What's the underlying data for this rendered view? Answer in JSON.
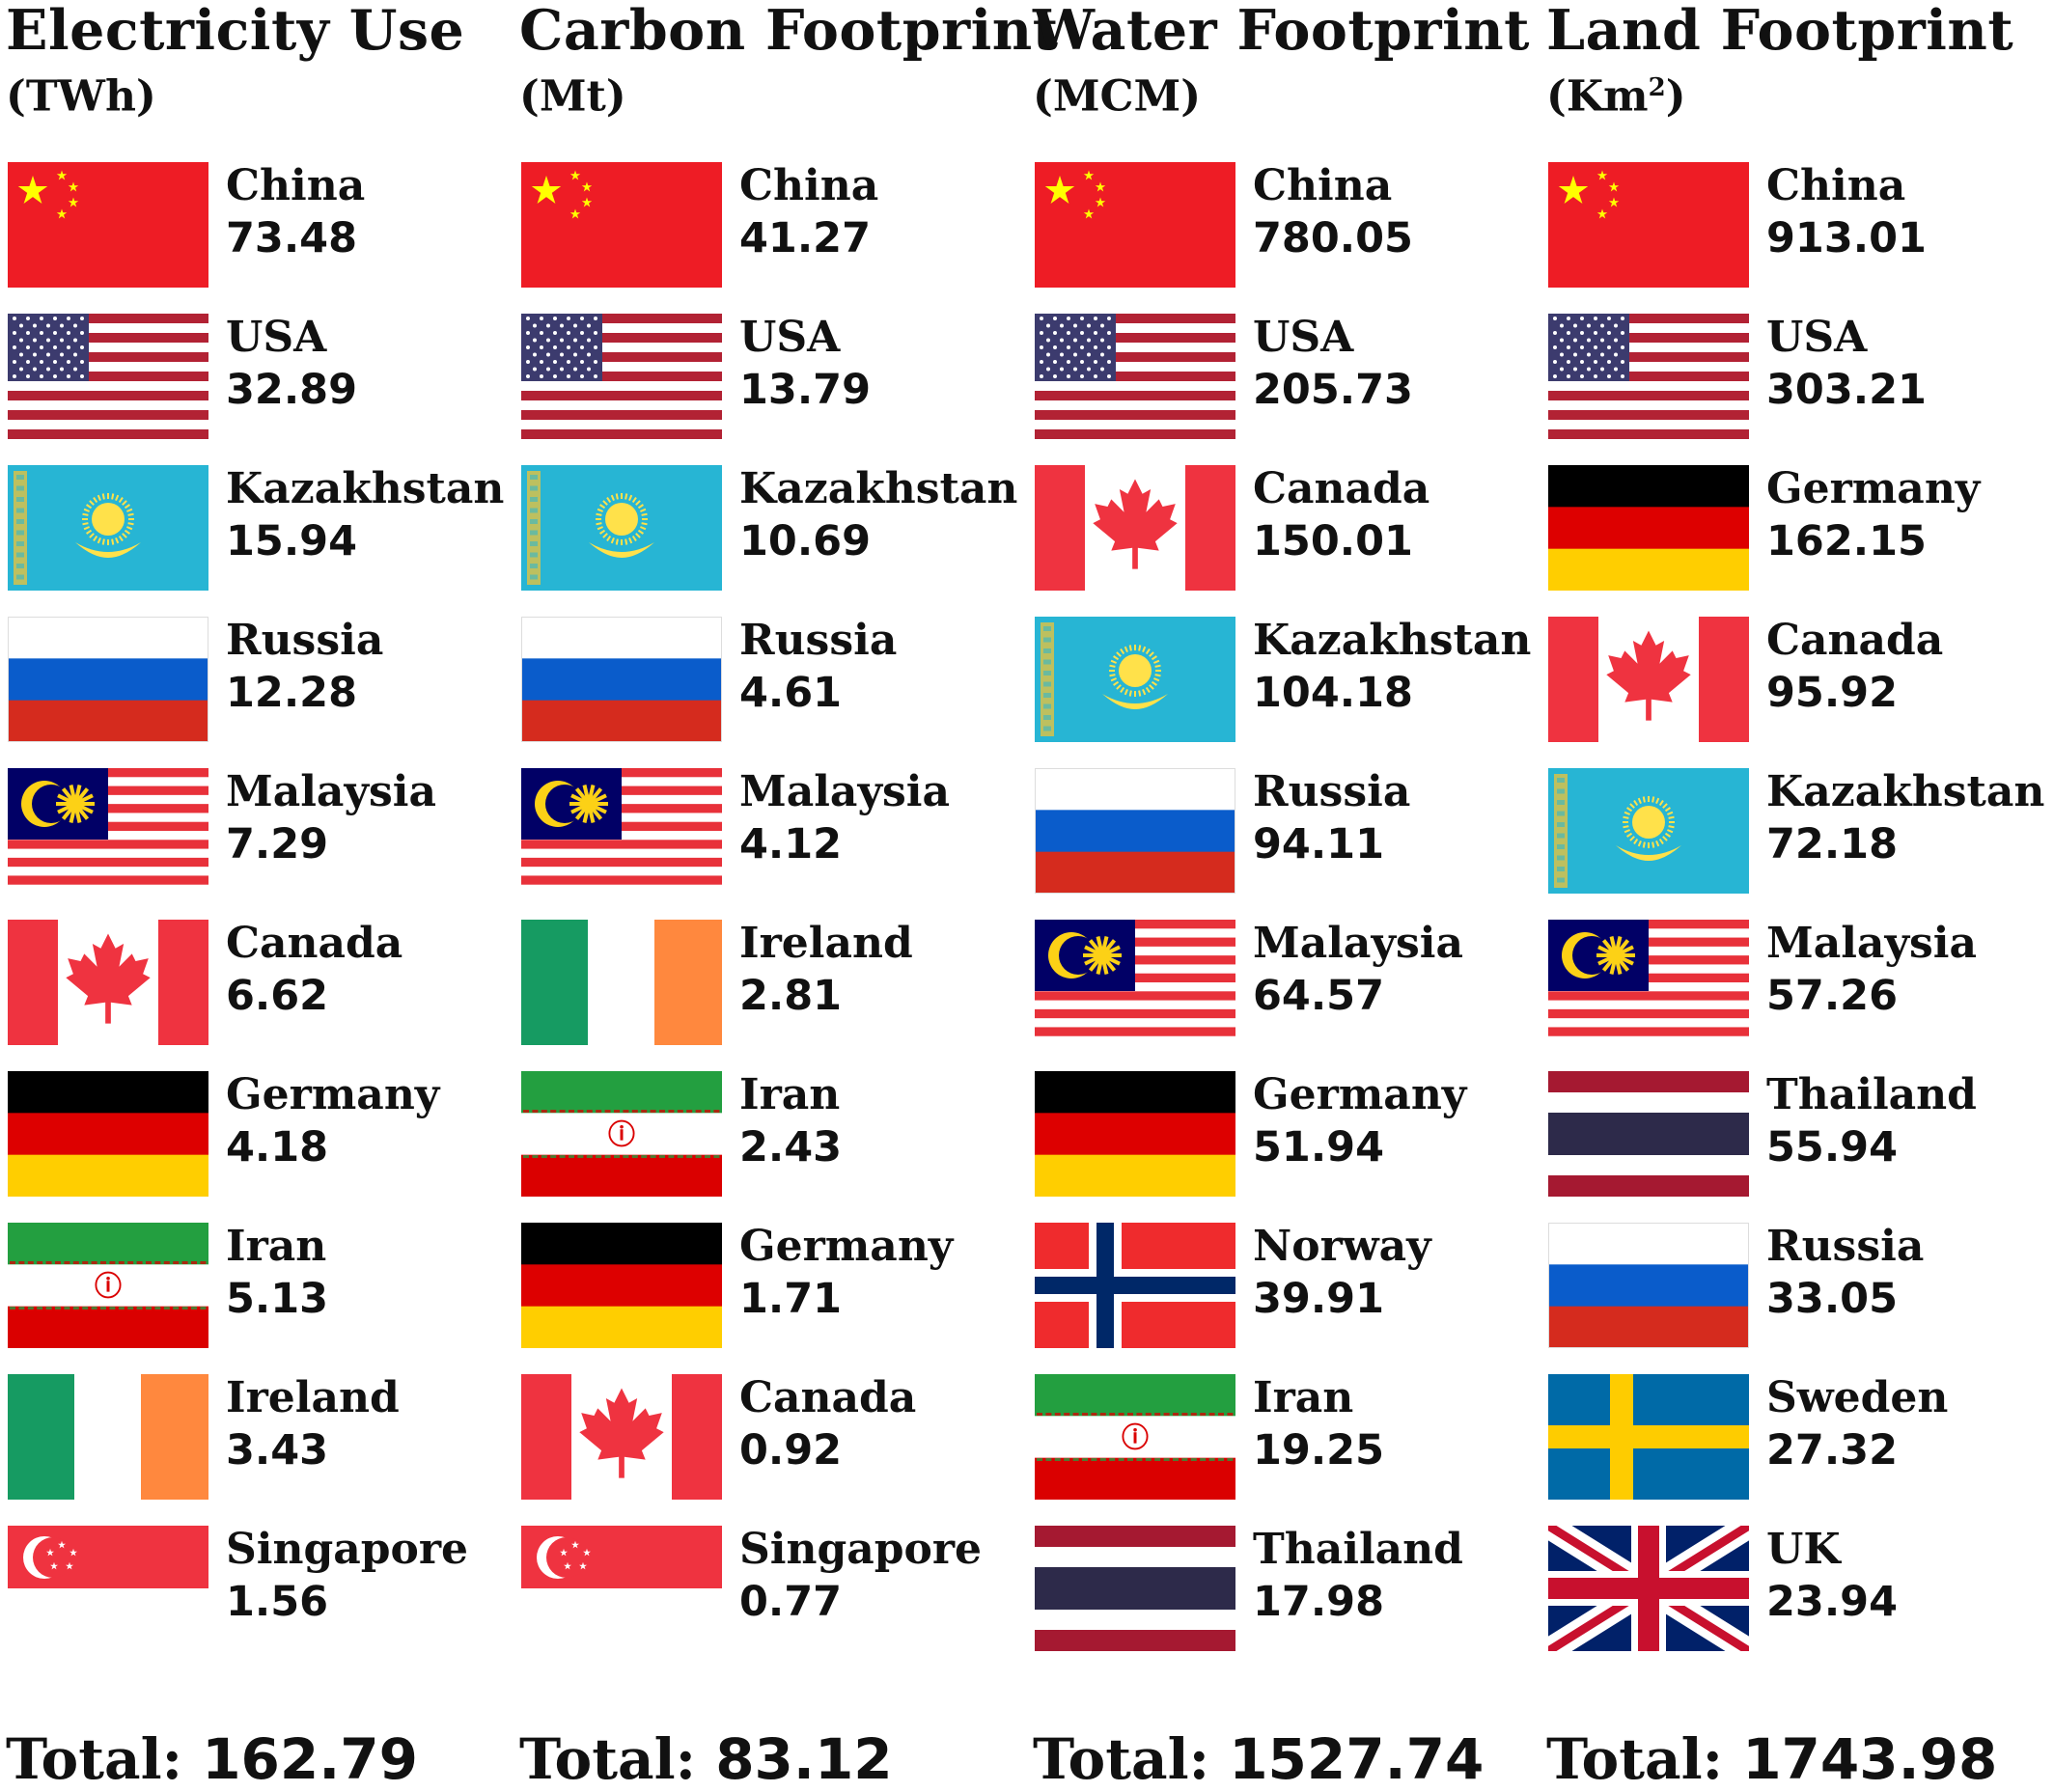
{
  "chart_data": {
    "type": "table",
    "panels": [
      {
        "title": "Electricity Use",
        "unit_prefix": "(TWh)",
        "unit_sup": "",
        "unit_suffix": "",
        "total_label": "Total: ",
        "total": "162.79",
        "rows": [
          {
            "country": "China",
            "value": "73.48",
            "flag": "china-flag-icon"
          },
          {
            "country": "USA",
            "value": "32.89",
            "flag": "usa-flag-icon"
          },
          {
            "country": "Kazakhstan",
            "value": "15.94",
            "flag": "kazakhstan-flag-icon"
          },
          {
            "country": "Russia",
            "value": "12.28",
            "flag": "russia-flag-icon"
          },
          {
            "country": "Malaysia",
            "value": "7.29",
            "flag": "malaysia-flag-icon"
          },
          {
            "country": "Canada",
            "value": "6.62",
            "flag": "canada-flag-icon"
          },
          {
            "country": "Germany",
            "value": "4.18",
            "flag": "germany-flag-icon"
          },
          {
            "country": "Iran",
            "value": "5.13",
            "flag": "iran-flag-icon"
          },
          {
            "country": "Ireland",
            "value": "3.43",
            "flag": "ireland-flag-icon"
          },
          {
            "country": "Singapore",
            "value": "1.56",
            "flag": "singapore-flag-icon"
          }
        ]
      },
      {
        "title": "Carbon Footprint",
        "unit_prefix": "(Mt)",
        "unit_sup": "",
        "unit_suffix": "",
        "total_label": "Total: ",
        "total": "83.12",
        "rows": [
          {
            "country": "China",
            "value": "41.27",
            "flag": "china-flag-icon"
          },
          {
            "country": "USA",
            "value": "13.79",
            "flag": "usa-flag-icon"
          },
          {
            "country": "Kazakhstan",
            "value": "10.69",
            "flag": "kazakhstan-flag-icon"
          },
          {
            "country": "Russia",
            "value": "4.61",
            "flag": "russia-flag-icon"
          },
          {
            "country": "Malaysia",
            "value": "4.12",
            "flag": "malaysia-flag-icon"
          },
          {
            "country": "Ireland",
            "value": "2.81",
            "flag": "ireland-flag-icon"
          },
          {
            "country": "Iran",
            "value": "2.43",
            "flag": "iran-flag-icon"
          },
          {
            "country": "Germany",
            "value": "1.71",
            "flag": "germany-flag-icon"
          },
          {
            "country": "Canada",
            "value": "0.92",
            "flag": "canada-flag-icon"
          },
          {
            "country": "Singapore",
            "value": "0.77",
            "flag": "singapore-flag-icon"
          }
        ]
      },
      {
        "title": "Water Footprint",
        "unit_prefix": "(MCM)",
        "unit_sup": "",
        "unit_suffix": "",
        "total_label": "Total: ",
        "total": "1527.74",
        "rows": [
          {
            "country": "China",
            "value": "780.05",
            "flag": "china-flag-icon"
          },
          {
            "country": "USA",
            "value": "205.73",
            "flag": "usa-flag-icon"
          },
          {
            "country": "Canada",
            "value": "150.01",
            "flag": "canada-flag-icon"
          },
          {
            "country": "Kazakhstan",
            "value": "104.18",
            "flag": "kazakhstan-flag-icon"
          },
          {
            "country": "Russia",
            "value": "94.11",
            "flag": "russia-flag-icon"
          },
          {
            "country": "Malaysia",
            "value": "64.57",
            "flag": "malaysia-flag-icon"
          },
          {
            "country": "Germany",
            "value": "51.94",
            "flag": "germany-flag-icon"
          },
          {
            "country": "Norway",
            "value": "39.91",
            "flag": "norway-flag-icon"
          },
          {
            "country": "Iran",
            "value": "19.25",
            "flag": "iran-flag-icon"
          },
          {
            "country": "Thailand",
            "value": "17.98",
            "flag": "thailand-flag-icon"
          }
        ]
      },
      {
        "title": "Land Footprint",
        "unit_prefix": "(Km",
        "unit_sup": "2",
        "unit_suffix": ")",
        "total_label": "Total: ",
        "total": "1743.98",
        "rows": [
          {
            "country": "China",
            "value": "913.01",
            "flag": "china-flag-icon"
          },
          {
            "country": "USA",
            "value": "303.21",
            "flag": "usa-flag-icon"
          },
          {
            "country": "Germany",
            "value": "162.15",
            "flag": "germany-flag-icon"
          },
          {
            "country": "Canada",
            "value": "95.92",
            "flag": "canada-flag-icon"
          },
          {
            "country": "Kazakhstan",
            "value": "72.18",
            "flag": "kazakhstan-flag-icon"
          },
          {
            "country": "Malaysia",
            "value": "57.26",
            "flag": "malaysia-flag-icon"
          },
          {
            "country": "Thailand",
            "value": "55.94",
            "flag": "thailand-flag-icon"
          },
          {
            "country": "Russia",
            "value": "33.05",
            "flag": "russia-flag-icon"
          },
          {
            "country": "Sweden",
            "value": "27.32",
            "flag": "sweden-flag-icon"
          },
          {
            "country": "UK",
            "value": "23.94",
            "flag": "uk-flag-icon"
          }
        ]
      }
    ]
  }
}
